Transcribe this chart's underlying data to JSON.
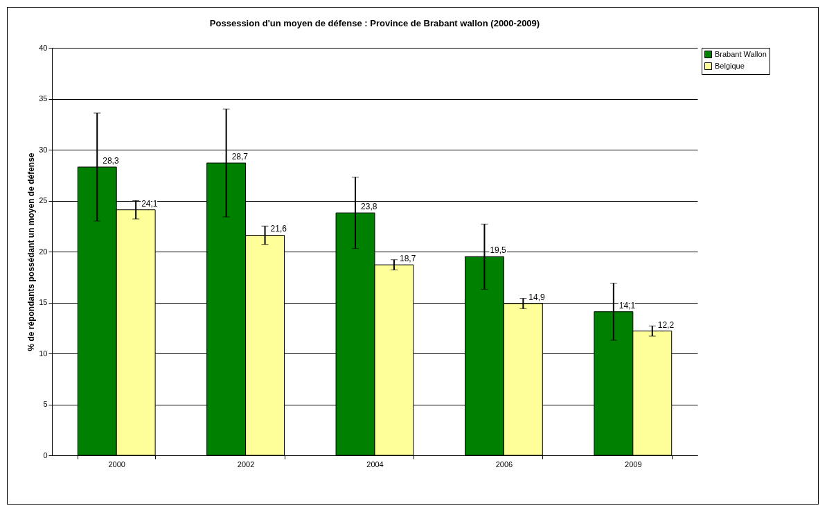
{
  "chart_data": {
    "type": "bar",
    "title": "Possession d'un moyen de défense : Province de Brabant wallon (2000-2009)",
    "ylabel": "% de répondants possédant un moyen de défense",
    "categories": [
      "2000",
      "2002",
      "2004",
      "2006",
      "2009"
    ],
    "series": [
      {
        "name": "Brabant Wallon",
        "color": "#008000",
        "values": [
          28.3,
          28.7,
          23.8,
          19.5,
          14.1
        ],
        "errors": [
          5.3,
          5.3,
          3.5,
          3.2,
          2.8
        ],
        "value_labels": [
          "28,3",
          "28,7",
          "23,8",
          "19,5",
          "14,1"
        ]
      },
      {
        "name": "Belgique",
        "color": "#ffff99",
        "values": [
          24.1,
          21.6,
          18.7,
          14.9,
          12.2
        ],
        "errors": [
          0.9,
          0.9,
          0.5,
          0.5,
          0.5
        ],
        "value_labels": [
          "24,1",
          "21,6",
          "18,7",
          "14,9",
          "12,2"
        ]
      }
    ],
    "ylim": [
      0,
      40
    ],
    "yticks": [
      0,
      5,
      10,
      15,
      20,
      25,
      30,
      35,
      40
    ],
    "grid": "y",
    "legend": "right"
  }
}
